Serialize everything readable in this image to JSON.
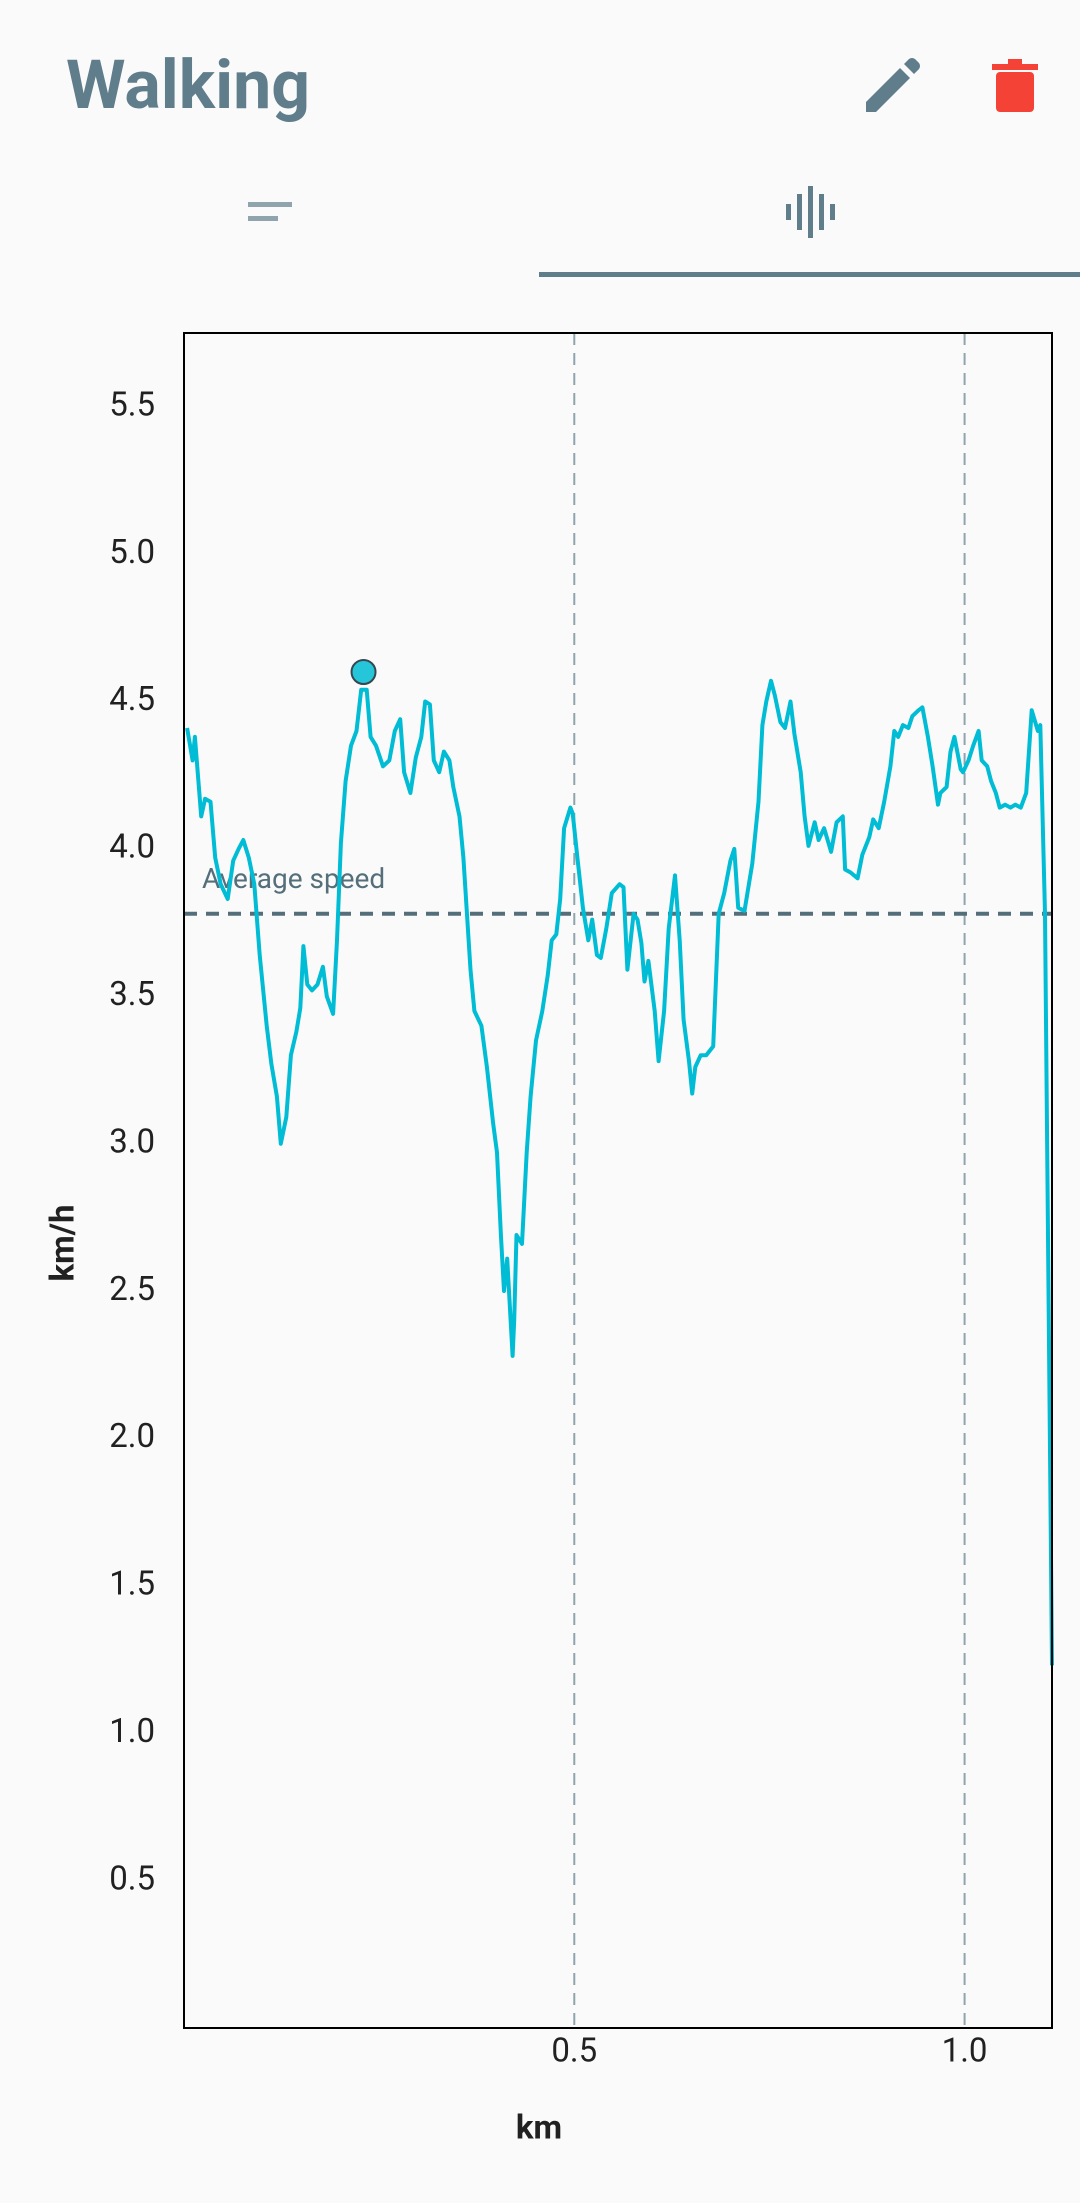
{
  "header": {
    "title": "Walking"
  },
  "chart_data": {
    "type": "line",
    "xlabel": "km",
    "ylabel": "km/h",
    "color": "#00bcd4",
    "xlim": [
      0,
      1.112
    ],
    "ylim": [
      0,
      5.75
    ],
    "xticks": [
      0.5,
      {
        "value": 1,
        "label": "1.0"
      }
    ],
    "yticks": [
      0.5,
      {
        "value": 1,
        "label": "1.0"
      },
      1.5,
      {
        "value": 2,
        "label": "2.0"
      },
      2.5,
      {
        "value": 3,
        "label": "3.0"
      },
      3.5,
      {
        "value": 4,
        "label": "4.0"
      },
      4.5,
      {
        "value": 5,
        "label": "5.0"
      },
      5.5
    ],
    "x_grid": true,
    "reference_line": {
      "label": "Average speed",
      "value": 3.78,
      "color": "#546e7a"
    },
    "highlight": {
      "x": 0.23,
      "value": 4.6
    },
    "x": [
      0.004,
      0.011,
      0.014,
      0.022,
      0.027,
      0.034,
      0.04,
      0.047,
      0.056,
      0.063,
      0.07,
      0.076,
      0.083,
      0.09,
      0.097,
      0.106,
      0.112,
      0.119,
      0.124,
      0.131,
      0.137,
      0.144,
      0.149,
      0.153,
      0.158,
      0.164,
      0.171,
      0.178,
      0.183,
      0.191,
      0.196,
      0.201,
      0.207,
      0.214,
      0.221,
      0.227,
      0.234,
      0.239,
      0.246,
      0.255,
      0.263,
      0.27,
      0.277,
      0.282,
      0.29,
      0.297,
      0.304,
      0.309,
      0.315,
      0.32,
      0.327,
      0.333,
      0.34,
      0.345,
      0.353,
      0.358,
      0.367,
      0.372,
      0.381,
      0.388,
      0.396,
      0.401,
      0.406,
      0.41,
      0.414,
      0.421,
      0.423,
      0.426,
      0.433,
      0.439,
      0.444,
      0.451,
      0.459,
      0.466,
      0.471,
      0.477,
      0.482,
      0.487,
      0.495,
      0.498,
      0.504,
      0.511,
      0.518,
      0.523,
      0.529,
      0.534,
      0.541,
      0.548,
      0.558,
      0.563,
      0.568,
      0.576,
      0.581,
      0.586,
      0.59,
      0.595,
      0.603,
      0.608,
      0.615,
      0.621,
      0.629,
      0.635,
      0.64,
      0.647,
      0.651,
      0.655,
      0.662,
      0.669,
      0.678,
      0.685,
      0.692,
      0.7,
      0.705,
      0.71,
      0.718,
      0.728,
      0.736,
      0.741,
      0.746,
      0.752,
      0.757,
      0.764,
      0.77,
      0.777,
      0.782,
      0.79,
      0.795,
      0.8,
      0.808,
      0.813,
      0.82,
      0.829,
      0.836,
      0.844,
      0.847,
      0.854,
      0.863,
      0.869,
      0.878,
      0.883,
      0.89,
      0.897,
      0.905,
      0.91,
      0.915,
      0.921,
      0.928,
      0.933,
      0.941,
      0.946,
      0.953,
      0.959,
      0.966,
      0.969,
      0.977,
      0.982,
      0.987,
      0.995,
      0.998,
      1.005,
      1.011,
      1.018,
      1.022,
      1.029,
      1.034,
      1.04,
      1.045,
      1.052,
      1.059,
      1.065,
      1.072,
      1.079,
      1.086,
      1.094,
      1.097,
      1.103,
      1.112
    ],
    "values": [
      4.41,
      4.3,
      4.38,
      4.11,
      4.17,
      4.16,
      3.97,
      3.88,
      3.83,
      3.96,
      4.0,
      4.03,
      3.97,
      3.88,
      3.64,
      3.4,
      3.27,
      3.16,
      3.0,
      3.09,
      3.3,
      3.38,
      3.46,
      3.67,
      3.54,
      3.52,
      3.54,
      3.6,
      3.5,
      3.44,
      3.69,
      4.02,
      4.23,
      4.35,
      4.4,
      4.54,
      4.54,
      4.38,
      4.35,
      4.28,
      4.3,
      4.4,
      4.44,
      4.26,
      4.19,
      4.31,
      4.38,
      4.5,
      4.49,
      4.3,
      4.26,
      4.33,
      4.3,
      4.21,
      4.11,
      3.97,
      3.59,
      3.45,
      3.4,
      3.26,
      3.07,
      2.97,
      2.69,
      2.5,
      2.61,
      2.28,
      2.4,
      2.69,
      2.66,
      2.97,
      3.16,
      3.35,
      3.45,
      3.57,
      3.69,
      3.71,
      3.83,
      4.07,
      4.14,
      4.12,
      3.97,
      3.8,
      3.69,
      3.76,
      3.64,
      3.63,
      3.73,
      3.85,
      3.88,
      3.87,
      3.59,
      3.78,
      3.76,
      3.68,
      3.55,
      3.62,
      3.45,
      3.28,
      3.45,
      3.73,
      3.91,
      3.69,
      3.42,
      3.28,
      3.17,
      3.26,
      3.3,
      3.3,
      3.33,
      3.78,
      3.85,
      3.96,
      4.0,
      3.8,
      3.79,
      3.95,
      4.16,
      4.42,
      4.5,
      4.57,
      4.52,
      4.43,
      4.41,
      4.5,
      4.39,
      4.26,
      4.11,
      4.01,
      4.09,
      4.03,
      4.07,
      3.99,
      4.09,
      4.11,
      3.93,
      3.92,
      3.9,
      3.98,
      4.04,
      4.1,
      4.07,
      4.16,
      4.28,
      4.4,
      4.38,
      4.42,
      4.41,
      4.45,
      4.47,
      4.48,
      4.38,
      4.28,
      4.15,
      4.19,
      4.21,
      4.33,
      4.38,
      4.27,
      4.26,
      4.3,
      4.35,
      4.4,
      4.3,
      4.28,
      4.23,
      4.19,
      4.14,
      4.15,
      4.14,
      4.15,
      4.14,
      4.19,
      4.47,
      4.4,
      4.42,
      3.78,
      1.23
    ]
  }
}
